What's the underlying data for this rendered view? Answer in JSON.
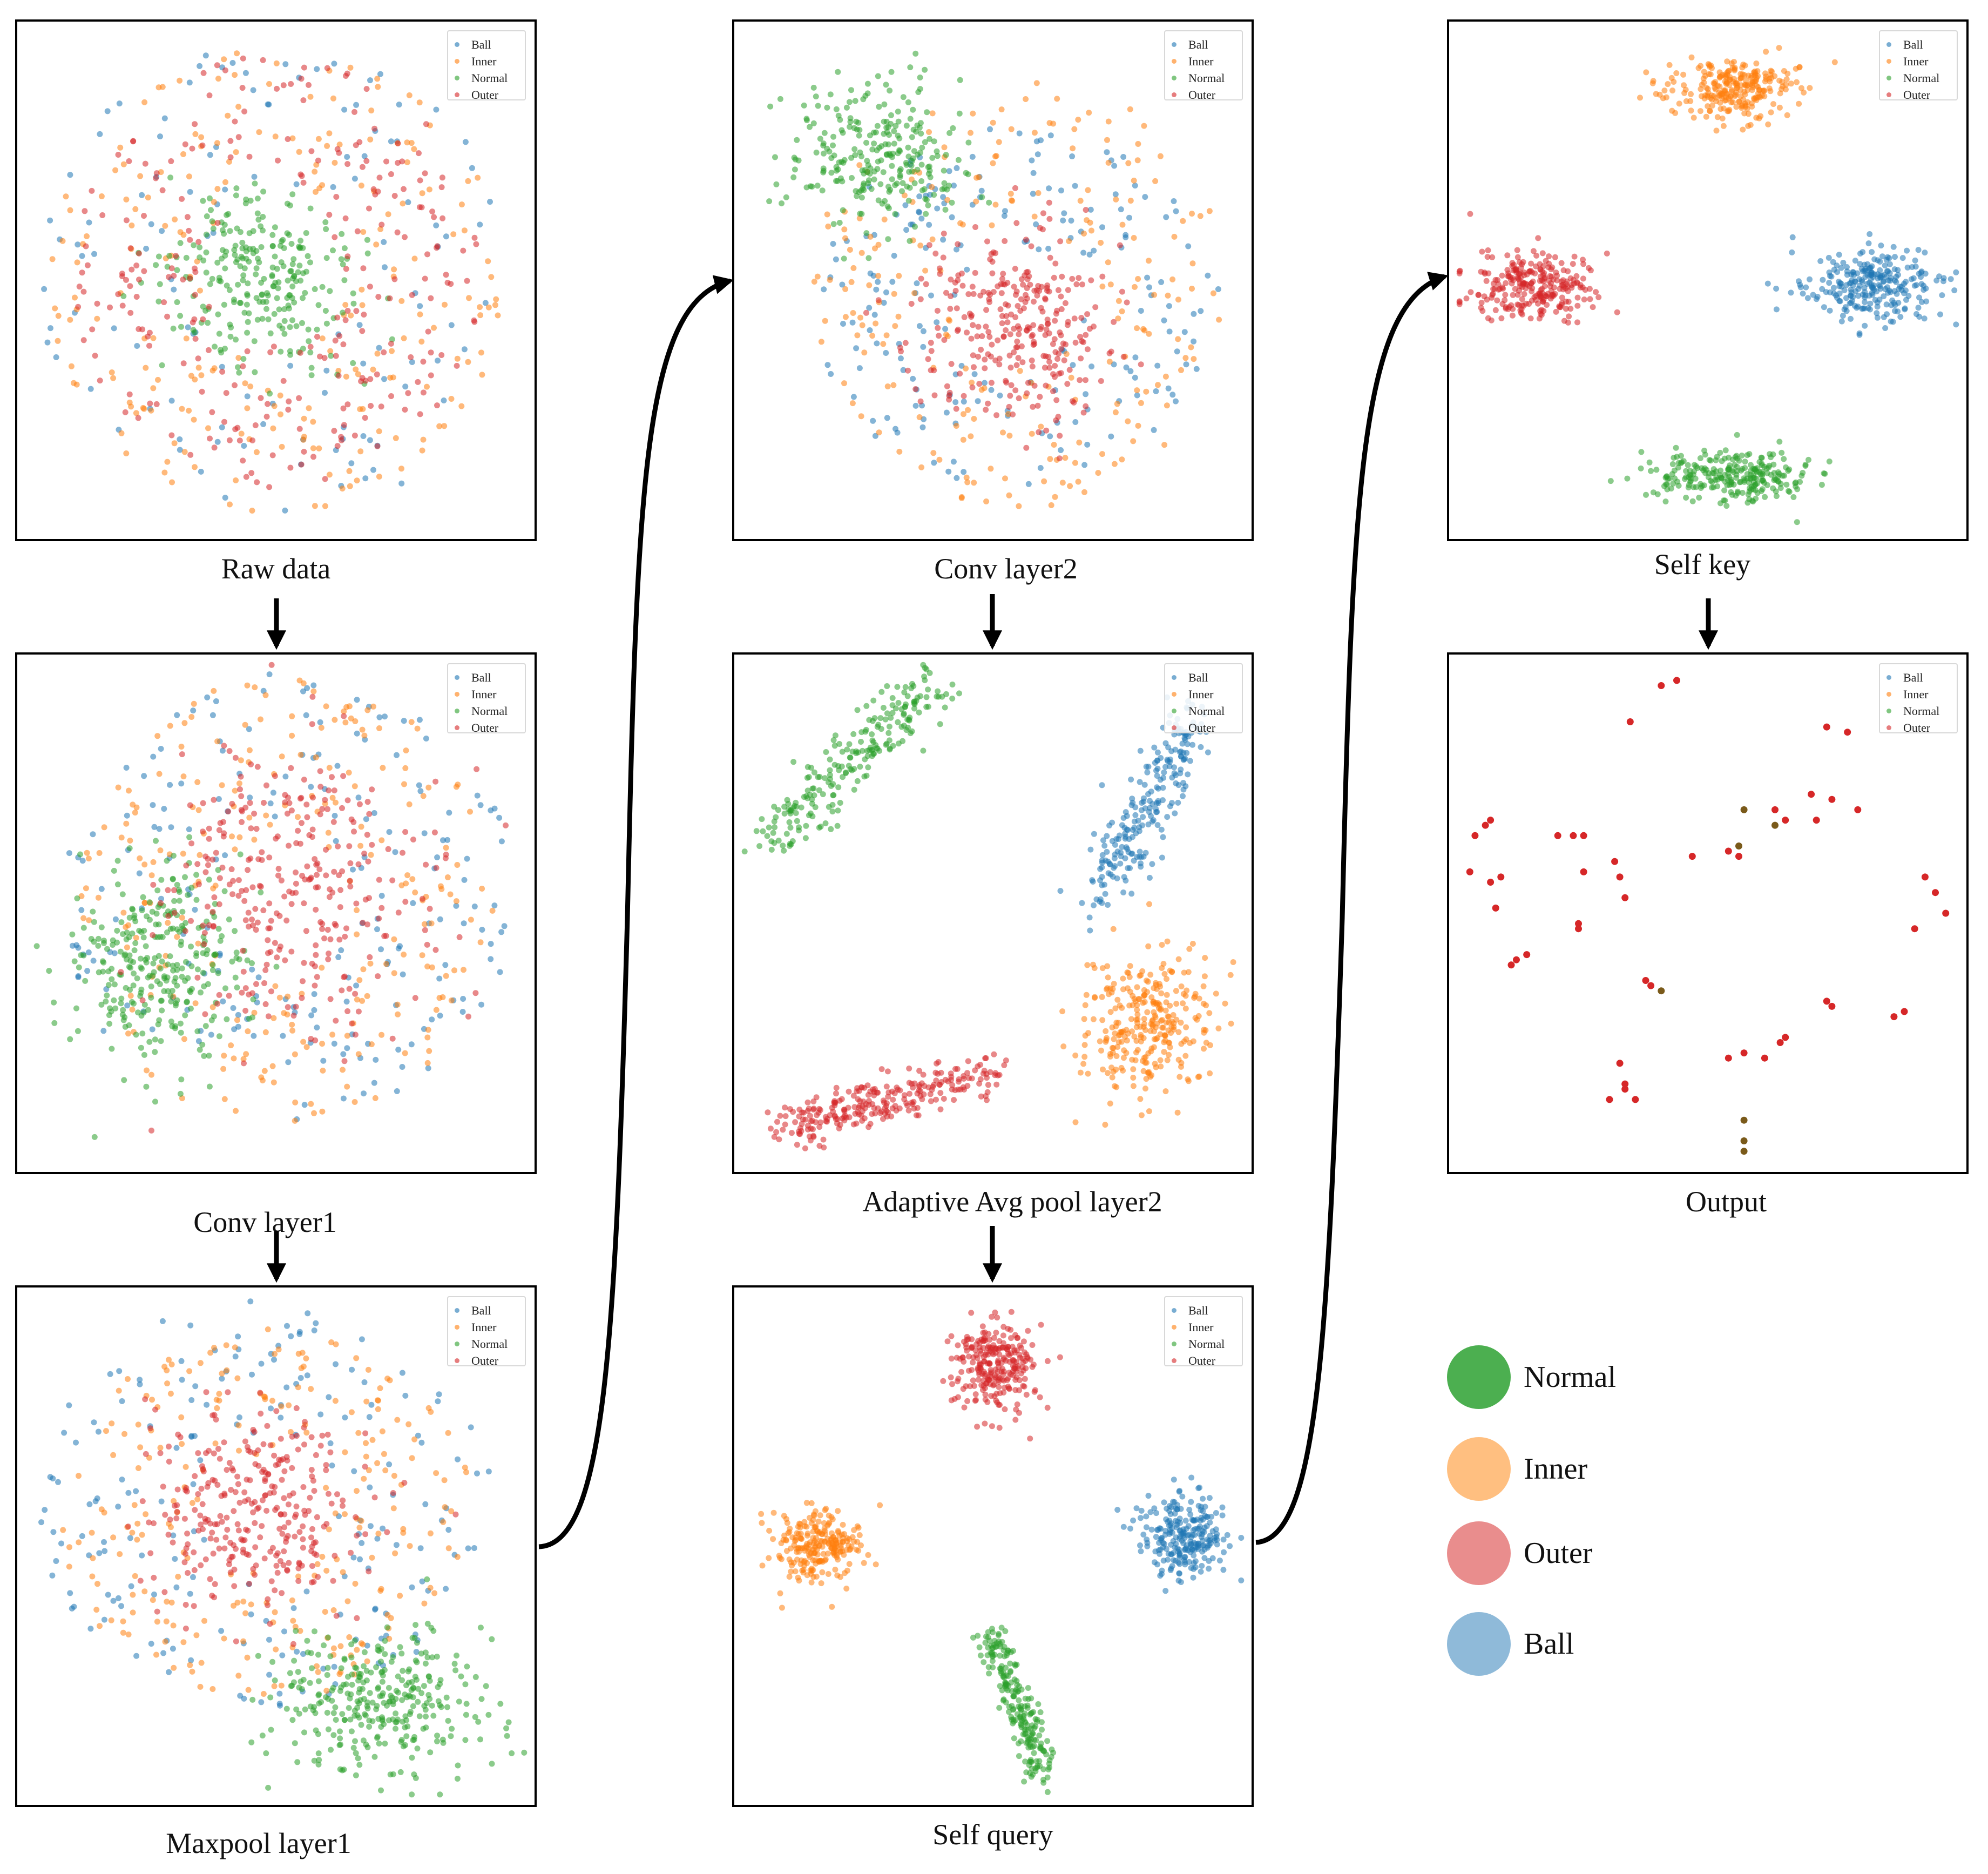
{
  "figure": {
    "key_legend": [
      {
        "label": "Normal",
        "color": "#4caf50"
      },
      {
        "label": "Inner",
        "color": "#ffbf80"
      },
      {
        "label": "Outer",
        "color": "#e98d8d"
      },
      {
        "label": "Ball",
        "color": "#8fbad9"
      }
    ]
  },
  "chart_data": [
    {
      "type": "scatter",
      "title": "Raw data",
      "legend": [
        "Ball",
        "Inner",
        "Normal",
        "Outer"
      ],
      "legend_position": "top-right",
      "series_colors": {
        "Ball": "#1f77b4",
        "Inner": "#ff7f0e",
        "Normal": "#2ca02c",
        "Outer": "#d62728"
      },
      "series": [
        {
          "name": "Ball",
          "pattern": "ring",
          "cx": 0.5,
          "cy": 0.5,
          "rx": 0.46,
          "ry": 0.47,
          "n": 120
        },
        {
          "name": "Inner",
          "pattern": "ring",
          "cx": 0.5,
          "cy": 0.5,
          "rx": 0.44,
          "ry": 0.45,
          "n": 220
        },
        {
          "name": "Normal",
          "pattern": "blob",
          "cx": 0.47,
          "cy": 0.5,
          "rx": 0.2,
          "ry": 0.17,
          "n": 260
        },
        {
          "name": "Outer",
          "pattern": "ring",
          "cx": 0.5,
          "cy": 0.48,
          "rx": 0.4,
          "ry": 0.42,
          "n": 260
        }
      ]
    },
    {
      "type": "scatter",
      "title": "Conv layer1",
      "legend": [
        "Ball",
        "Inner",
        "Normal",
        "Outer"
      ],
      "legend_position": "top-right",
      "series_colors": {
        "Ball": "#1f77b4",
        "Inner": "#ff7f0e",
        "Normal": "#2ca02c",
        "Outer": "#d62728"
      },
      "series": [
        {
          "name": "Ball",
          "pattern": "ring",
          "cx": 0.52,
          "cy": 0.47,
          "rx": 0.44,
          "ry": 0.44,
          "n": 200
        },
        {
          "name": "Inner",
          "pattern": "ring",
          "cx": 0.52,
          "cy": 0.48,
          "rx": 0.4,
          "ry": 0.44,
          "n": 240
        },
        {
          "name": "Normal",
          "pattern": "blob",
          "cx": 0.28,
          "cy": 0.6,
          "rx": 0.16,
          "ry": 0.2,
          "n": 300
        },
        {
          "name": "Outer",
          "pattern": "blob",
          "cx": 0.53,
          "cy": 0.45,
          "rx": 0.26,
          "ry": 0.29,
          "n": 300
        }
      ]
    },
    {
      "type": "scatter",
      "title": "Maxpool layer1",
      "legend": [
        "Ball",
        "Inner",
        "Normal",
        "Outer"
      ],
      "legend_position": "top-right",
      "series_colors": {
        "Ball": "#1f77b4",
        "Inner": "#ff7f0e",
        "Normal": "#2ca02c",
        "Outer": "#d62728"
      },
      "series": [
        {
          "name": "Ball",
          "pattern": "ring",
          "cx": 0.48,
          "cy": 0.42,
          "rx": 0.44,
          "ry": 0.4,
          "n": 190
        },
        {
          "name": "Inner",
          "pattern": "ring",
          "cx": 0.48,
          "cy": 0.44,
          "rx": 0.4,
          "ry": 0.36,
          "n": 240
        },
        {
          "name": "Normal",
          "pattern": "blob",
          "cx": 0.7,
          "cy": 0.8,
          "rx": 0.2,
          "ry": 0.14,
          "n": 320
        },
        {
          "name": "Outer",
          "pattern": "blob",
          "cx": 0.46,
          "cy": 0.44,
          "rx": 0.22,
          "ry": 0.2,
          "n": 300
        }
      ]
    },
    {
      "type": "scatter",
      "title": "Conv layer2",
      "legend": [
        "Ball",
        "Inner",
        "Normal",
        "Outer"
      ],
      "legend_position": "top-right",
      "series_colors": {
        "Ball": "#1f77b4",
        "Inner": "#ff7f0e",
        "Normal": "#2ca02c",
        "Outer": "#d62728"
      },
      "series": [
        {
          "name": "Ball",
          "pattern": "ring",
          "cx": 0.55,
          "cy": 0.55,
          "rx": 0.4,
          "ry": 0.35,
          "n": 200
        },
        {
          "name": "Inner",
          "pattern": "ring",
          "cx": 0.55,
          "cy": 0.52,
          "rx": 0.4,
          "ry": 0.42,
          "n": 220
        },
        {
          "name": "Normal",
          "pattern": "blob",
          "cx": 0.28,
          "cy": 0.26,
          "rx": 0.17,
          "ry": 0.15,
          "n": 260
        },
        {
          "name": "Outer",
          "pattern": "blob",
          "cx": 0.55,
          "cy": 0.58,
          "rx": 0.2,
          "ry": 0.19,
          "n": 300
        }
      ]
    },
    {
      "type": "scatter",
      "title": "Adaptive Avg pool layer2",
      "legend": [
        "Ball",
        "Inner",
        "Normal",
        "Outer"
      ],
      "legend_position": "top-right",
      "series_colors": {
        "Ball": "#1f77b4",
        "Inner": "#ff7f0e",
        "Normal": "#2ca02c",
        "Outer": "#d62728"
      },
      "series": [
        {
          "name": "Ball",
          "pattern": "band",
          "x1": 0.7,
          "y1": 0.47,
          "x2": 0.89,
          "y2": 0.12,
          "w": 0.06,
          "n": 230
        },
        {
          "name": "Inner",
          "pattern": "blob",
          "cx": 0.8,
          "cy": 0.72,
          "rx": 0.13,
          "ry": 0.14,
          "n": 300
        },
        {
          "name": "Normal",
          "pattern": "band",
          "x1": 0.07,
          "y1": 0.36,
          "x2": 0.38,
          "y2": 0.06,
          "w": 0.06,
          "n": 230
        },
        {
          "name": "Outer",
          "pattern": "band",
          "x1": 0.09,
          "y1": 0.92,
          "x2": 0.5,
          "y2": 0.8,
          "w": 0.05,
          "n": 260
        }
      ]
    },
    {
      "type": "scatter",
      "title": "Self query",
      "legend": [
        "Ball",
        "Inner",
        "Normal",
        "Outer"
      ],
      "legend_position": "top-right",
      "series_colors": {
        "Ball": "#1f77b4",
        "Inner": "#ff7f0e",
        "Normal": "#2ca02c",
        "Outer": "#d62728"
      },
      "series": [
        {
          "name": "Ball",
          "pattern": "blob",
          "cx": 0.87,
          "cy": 0.48,
          "rx": 0.08,
          "ry": 0.08,
          "n": 240
        },
        {
          "name": "Inner",
          "pattern": "blob",
          "cx": 0.16,
          "cy": 0.5,
          "rx": 0.09,
          "ry": 0.07,
          "n": 240
        },
        {
          "name": "Normal",
          "pattern": "band",
          "x1": 0.5,
          "y1": 0.68,
          "x2": 0.6,
          "y2": 0.94,
          "w": 0.04,
          "n": 220
        },
        {
          "name": "Outer",
          "pattern": "blob",
          "cx": 0.51,
          "cy": 0.15,
          "rx": 0.08,
          "ry": 0.09,
          "n": 260
        }
      ]
    },
    {
      "type": "scatter",
      "title": "Self key",
      "legend": [
        "Ball",
        "Inner",
        "Normal",
        "Outer"
      ],
      "legend_position": "top-right",
      "series_colors": {
        "Ball": "#1f77b4",
        "Inner": "#ff7f0e",
        "Normal": "#2ca02c",
        "Outer": "#d62728"
      },
      "series": [
        {
          "name": "Ball",
          "pattern": "blob",
          "cx": 0.82,
          "cy": 0.51,
          "rx": 0.13,
          "ry": 0.07,
          "n": 260
        },
        {
          "name": "Inner",
          "pattern": "blob",
          "cx": 0.55,
          "cy": 0.13,
          "rx": 0.12,
          "ry": 0.06,
          "n": 260
        },
        {
          "name": "Normal",
          "pattern": "blob",
          "cx": 0.55,
          "cy": 0.88,
          "rx": 0.16,
          "ry": 0.05,
          "n": 260
        },
        {
          "name": "Outer",
          "pattern": "blob",
          "cx": 0.16,
          "cy": 0.51,
          "rx": 0.13,
          "ry": 0.07,
          "n": 260
        }
      ]
    },
    {
      "type": "scatter",
      "title": "Output",
      "legend": [
        "Ball",
        "Inner",
        "Normal",
        "Outer"
      ],
      "legend_position": "top-right",
      "series_colors": {
        "Ball": "#1f77b4",
        "Inner": "#ff7f0e",
        "Normal": "#2ca02c",
        "Outer": "#d62728"
      },
      "series": [
        {
          "name": "Normal",
          "pattern": "points",
          "x": [
            0.56,
            0.57,
            0.41,
            0.63,
            0.57,
            0.57,
            0.57
          ],
          "y": [
            0.37,
            0.3,
            0.65,
            0.33,
            0.94,
            0.96,
            0.9
          ]
        },
        {
          "name": "Outer",
          "pattern": "points",
          "x": [
            0.41,
            0.44,
            0.35,
            0.07,
            0.08,
            0.05,
            0.04,
            0.1,
            0.08,
            0.09,
            0.21,
            0.24,
            0.26,
            0.26,
            0.32,
            0.33,
            0.34,
            0.25,
            0.25,
            0.13,
            0.15,
            0.12,
            0.38,
            0.39,
            0.54,
            0.56,
            0.63,
            0.65,
            0.7,
            0.71,
            0.73,
            0.77,
            0.79,
            0.74,
            0.65,
            0.64,
            0.61,
            0.54,
            0.57,
            0.86,
            0.88,
            0.92,
            0.94,
            0.96,
            0.9,
            0.33,
            0.34,
            0.31,
            0.36,
            0.34,
            0.47,
            0.73,
            0.74
          ],
          "y": [
            0.06,
            0.05,
            0.13,
            0.33,
            0.32,
            0.35,
            0.42,
            0.43,
            0.44,
            0.49,
            0.35,
            0.35,
            0.35,
            0.42,
            0.4,
            0.43,
            0.47,
            0.52,
            0.53,
            0.59,
            0.58,
            0.6,
            0.63,
            0.64,
            0.38,
            0.39,
            0.3,
            0.32,
            0.27,
            0.32,
            0.14,
            0.15,
            0.3,
            0.28,
            0.74,
            0.75,
            0.78,
            0.78,
            0.77,
            0.7,
            0.69,
            0.43,
            0.46,
            0.5,
            0.53,
            0.79,
            0.84,
            0.86,
            0.86,
            0.83,
            0.39,
            0.67,
            0.68
          ]
        }
      ]
    }
  ],
  "captions": {
    "raw": "Raw data",
    "conv1": "Conv layer1",
    "maxpool1": "Maxpool layer1",
    "conv2": "Conv layer2",
    "avgpool2": "Adaptive Avg pool layer2",
    "selfquery": "Self query",
    "selfkey": "Self key",
    "output": "Output"
  }
}
